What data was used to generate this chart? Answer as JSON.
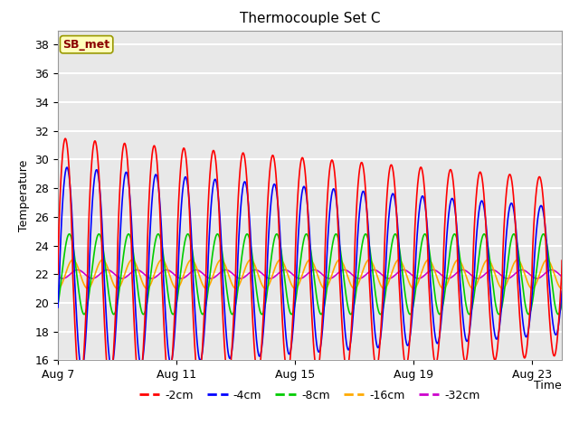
{
  "title": "Thermocouple Set C",
  "xlabel": "Time",
  "ylabel": "Temperature",
  "annotation": "SB_met",
  "legend_labels": [
    "-2cm",
    "-4cm",
    "-8cm",
    "-16cm",
    "-32cm"
  ],
  "legend_colors": [
    "#ff0000",
    "#0000ff",
    "#00cc00",
    "#ffaa00",
    "#cc00cc"
  ],
  "ylim": [
    16,
    39
  ],
  "yticks": [
    16,
    18,
    20,
    22,
    24,
    26,
    28,
    30,
    32,
    34,
    36,
    38
  ],
  "xtick_positions": [
    0,
    4,
    8,
    12,
    16
  ],
  "xtick_labels": [
    "Aug 7",
    "Aug 11",
    "Aug 15",
    "Aug 19",
    "Aug 23"
  ],
  "xlim": [
    0,
    17
  ],
  "fig_bg": "#ffffff",
  "plot_bg": "#e8e8e8",
  "grid_color": "#ffffff",
  "n_days": 18,
  "pts_per_day": 96,
  "base_temp": 22.0,
  "amp_2cm_start": 9.5,
  "amp_2cm_end": 6.5,
  "amp_4cm_start": 7.5,
  "amp_4cm_end": 4.5,
  "amp_8cm": 2.8,
  "amp_16cm": 1.0,
  "amp_32cm": 0.3,
  "phase_2cm": 0.0,
  "phase_4cm": 0.35,
  "phase_8cm": 0.85,
  "phase_16cm": 1.6,
  "phase_32cm": 2.6,
  "linewidth": 1.2
}
